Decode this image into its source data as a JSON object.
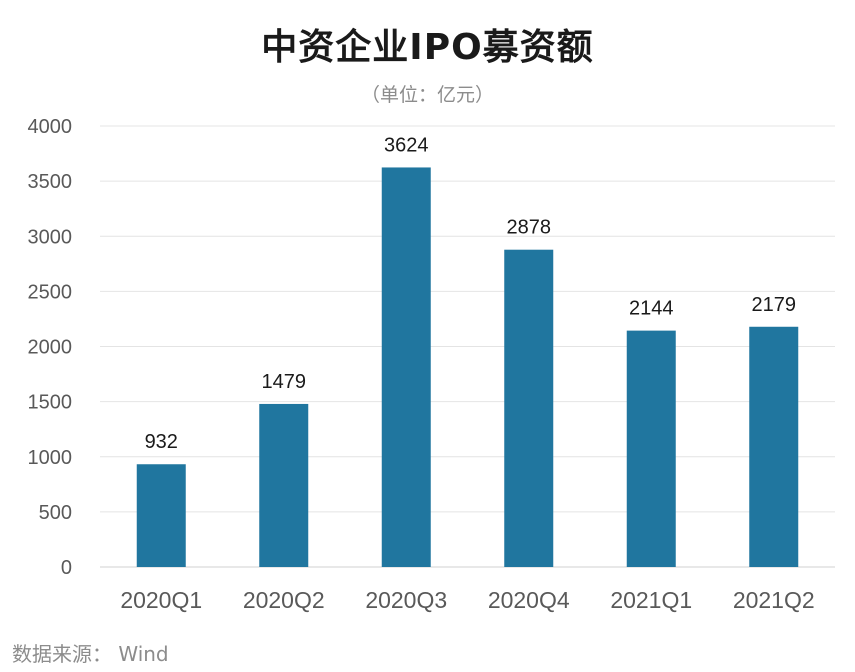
{
  "chart_data": {
    "type": "bar",
    "title": "中资企业IPO募资额",
    "subtitle": "（单位：亿元）",
    "categories": [
      "2020Q1",
      "2020Q2",
      "2020Q3",
      "2020Q4",
      "2021Q1",
      "2021Q2"
    ],
    "values": [
      932,
      1479,
      3624,
      2878,
      2144,
      2179
    ],
    "data_labels": [
      "932",
      "1479",
      "3624",
      "2878",
      "2144",
      "2179"
    ],
    "y_ticks": [
      0,
      500,
      1000,
      1500,
      2000,
      2500,
      3000,
      3500,
      4000
    ],
    "ylim": [
      0,
      4000
    ],
    "xlabel": "",
    "ylabel": "",
    "grid": true,
    "legend": "none",
    "bar_color": "#20769f"
  },
  "source": "数据来源： Wind"
}
